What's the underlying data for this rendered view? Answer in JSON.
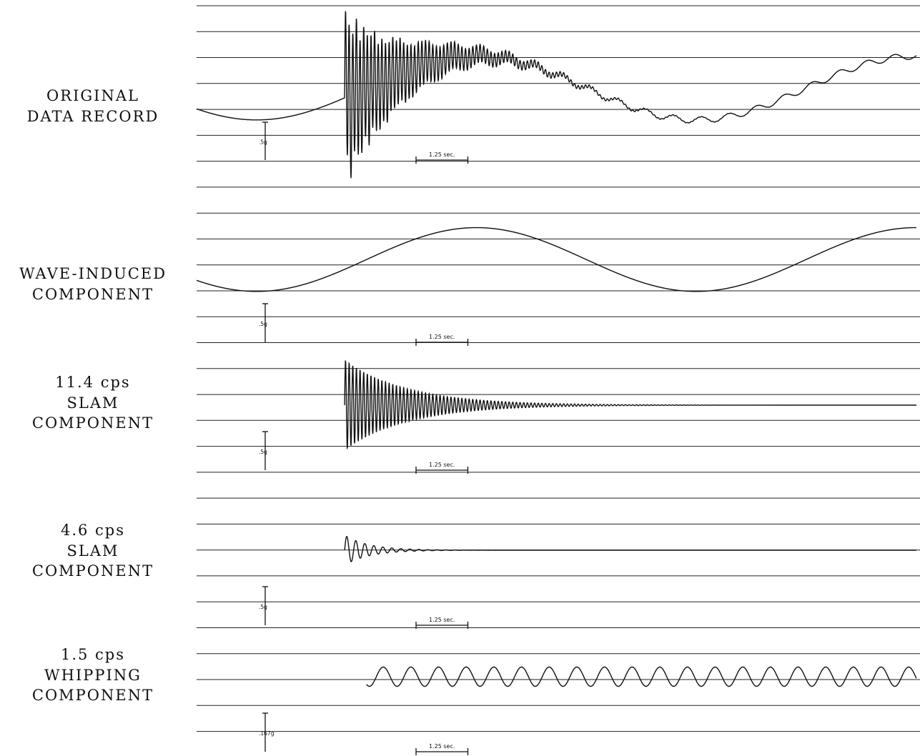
{
  "colors": {
    "trace": "#111111",
    "grid": "#222222",
    "background": "#ffffff"
  },
  "chart_data": [
    {
      "type": "line",
      "label_lines": [
        "ORIGINAL",
        "DATA RECORD"
      ],
      "scale_label": ".5g",
      "time_label": "1.25 sec.",
      "series": [
        {
          "components": [
            {
              "kind": "sine",
              "amp": 0.62,
              "period": 10.6,
              "phase": -2.43,
              "center": 0.4,
              "t_start": 0,
              "t_end": 21.6
            },
            {
              "kind": "burst",
              "amp": 1.5,
              "freq": 11.4,
              "decay": 1.5,
              "t_start": 3.57
            },
            {
              "kind": "burst",
              "amp": 0.35,
              "freq": 4.6,
              "decay": 0.6,
              "t_start": 3.57
            },
            {
              "kind": "sine",
              "amp": 0.06,
              "period": 0.667,
              "phase": 0,
              "t_start": 4.2
            }
          ]
        }
      ]
    },
    {
      "type": "line",
      "label_lines": [
        "WAVE-INDUCED",
        "COMPONENT"
      ],
      "scale_label": ".5g",
      "time_label": "1.25 sec.",
      "series": [
        {
          "components": [
            {
              "kind": "sine",
              "amp": 0.62,
              "period": 10.6,
              "phase": -2.43,
              "center": 0.4,
              "t_start": 0,
              "t_end": 21.6
            }
          ]
        }
      ]
    },
    {
      "type": "line",
      "label_lines": [
        "11.4 cps",
        "SLAM",
        "COMPONENT"
      ],
      "scale_label": ".5g",
      "time_label": "1.25 sec.",
      "series": [
        {
          "components": [
            {
              "kind": "burst",
              "amp": 1.5,
              "freq": 11.4,
              "decay": 1.5,
              "t_start": 3.57,
              "t_end": 21.8
            }
          ]
        }
      ]
    },
    {
      "type": "line",
      "label_lines": [
        "4.6 cps",
        "SLAM",
        "COMPONENT"
      ],
      "scale_label": ".5g",
      "time_label": "1.25 sec.",
      "series": [
        {
          "components": [
            {
              "kind": "burst",
              "amp": 0.35,
              "freq": 4.6,
              "decay": 0.6,
              "t_start": 3.57,
              "t_end": 22
            }
          ]
        }
      ]
    },
    {
      "type": "line",
      "label_lines": [
        "1.5 cps",
        "WHIPPING",
        "COMPONENT"
      ],
      "scale_label": ".167g",
      "time_label": "1.25 sec.",
      "series": [
        {
          "components": [
            {
              "kind": "sine",
              "amp": 0.45,
              "period": 0.667,
              "phase": 3.14,
              "t_start": 4.1,
              "t_end": 22.3
            }
          ]
        }
      ]
    }
  ]
}
